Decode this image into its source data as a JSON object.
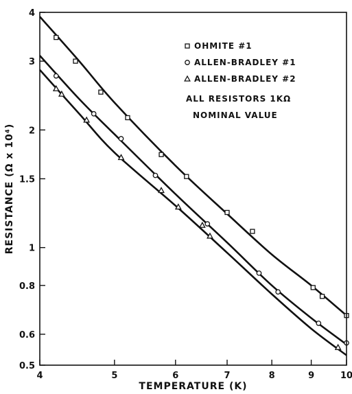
{
  "chart_data": {
    "type": "scatter",
    "xlabel": "TEMPERATURE (K)",
    "ylabel": "RESISTANCE (Ω x 10⁴)",
    "xscale": "log",
    "yscale": "log",
    "xlim": [
      4,
      10
    ],
    "ylim": [
      0.5,
      4
    ],
    "xticks": [
      4,
      5,
      6,
      7,
      8,
      9,
      10
    ],
    "xtick_labels": [
      "4",
      "5",
      "6",
      "7",
      "8",
      "9",
      "10"
    ],
    "yticks": [
      0.5,
      0.6,
      0.8,
      1,
      1.5,
      2,
      3,
      4
    ],
    "ytick_labels": [
      "0.5",
      "0.6",
      "0.8",
      "1",
      "1.5",
      "2",
      "3",
      "4"
    ],
    "grid": false,
    "legend_position": "top-right",
    "legend_note": [
      "ALL RESISTORS 1KΩ",
      "NOMINAL VALUE"
    ],
    "series": [
      {
        "name": "OHMITE #1",
        "marker": "square",
        "points": [
          [
            4.2,
            3.45
          ],
          [
            4.45,
            3.0
          ],
          [
            4.8,
            2.5
          ],
          [
            5.2,
            2.15
          ],
          [
            5.75,
            1.73
          ],
          [
            6.2,
            1.52
          ],
          [
            7.0,
            1.23
          ],
          [
            7.55,
            1.1
          ],
          [
            9.05,
            0.79
          ],
          [
            9.3,
            0.75
          ],
          [
            10.0,
            0.67
          ]
        ],
        "curve": [
          [
            4.0,
            3.9
          ],
          [
            4.5,
            3.0
          ],
          [
            5.0,
            2.35
          ],
          [
            6.0,
            1.62
          ],
          [
            7.0,
            1.22
          ],
          [
            8.0,
            0.96
          ],
          [
            9.0,
            0.8
          ],
          [
            10.0,
            0.67
          ]
        ]
      },
      {
        "name": "ALLEN-BRADLEY #1",
        "marker": "circle",
        "points": [
          [
            4.2,
            2.75
          ],
          [
            4.7,
            2.2
          ],
          [
            5.1,
            1.9
          ],
          [
            5.65,
            1.53
          ],
          [
            6.6,
            1.15
          ],
          [
            7.7,
            0.86
          ],
          [
            8.15,
            0.77
          ],
          [
            9.2,
            0.64
          ],
          [
            10.0,
            0.57
          ]
        ],
        "curve": [
          [
            4.0,
            3.1
          ],
          [
            4.5,
            2.4
          ],
          [
            5.0,
            1.95
          ],
          [
            6.0,
            1.37
          ],
          [
            7.0,
            1.03
          ],
          [
            8.0,
            0.8
          ],
          [
            9.0,
            0.66
          ],
          [
            10.0,
            0.565
          ]
        ]
      },
      {
        "name": "ALLEN-BRADLEY #2",
        "marker": "triangle",
        "points": [
          [
            4.2,
            2.55
          ],
          [
            4.27,
            2.47
          ],
          [
            4.6,
            2.12
          ],
          [
            5.1,
            1.7
          ],
          [
            5.75,
            1.4
          ],
          [
            6.05,
            1.27
          ],
          [
            6.5,
            1.14
          ],
          [
            6.65,
            1.07
          ],
          [
            9.75,
            0.555
          ]
        ],
        "curve": [
          [
            4.0,
            2.85
          ],
          [
            4.5,
            2.2
          ],
          [
            5.0,
            1.75
          ],
          [
            6.0,
            1.28
          ],
          [
            7.0,
            0.97
          ],
          [
            8.0,
            0.76
          ],
          [
            9.0,
            0.62
          ],
          [
            10.0,
            0.53
          ]
        ]
      }
    ]
  }
}
